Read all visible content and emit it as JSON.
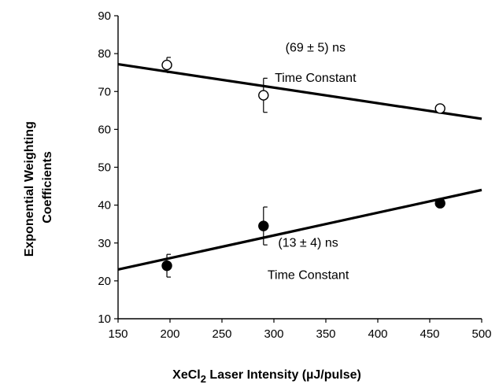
{
  "chart_data": {
    "type": "scatter",
    "xlabel": {
      "prefix": "XeCl",
      "subscript": "2",
      "suffix": " Laser Intensity (µJ/pulse)"
    },
    "ylabel_lines": [
      "Exponential Weighting",
      "Coefficients"
    ],
    "xlim": [
      150,
      500
    ],
    "ylim": [
      10,
      90
    ],
    "x_ticks": [
      150,
      200,
      250,
      300,
      350,
      400,
      450,
      500
    ],
    "y_ticks": [
      10,
      20,
      30,
      40,
      50,
      60,
      70,
      80,
      90
    ],
    "grid": false,
    "series": [
      {
        "marker": "open-circle",
        "points": [
          {
            "x": 197,
            "y": 77,
            "err": 2
          },
          {
            "x": 290,
            "y": 69,
            "err": 4.5
          },
          {
            "x": 460,
            "y": 65.5,
            "err": 0.5
          }
        ],
        "fit": {
          "x": [
            150,
            500
          ],
          "y": [
            77.2,
            62.8
          ]
        }
      },
      {
        "marker": "filled-circle",
        "points": [
          {
            "x": 197,
            "y": 24,
            "err": 3
          },
          {
            "x": 290,
            "y": 34.5,
            "err": 5
          },
          {
            "x": 460,
            "y": 40.5,
            "err": 0.5
          }
        ],
        "fit": {
          "x": [
            150,
            500
          ],
          "y": [
            23,
            44
          ]
        }
      }
    ],
    "annotations": [
      {
        "text": "(69 ± 5) ns",
        "x": 340,
        "y": 80.5
      },
      {
        "text": "Time Constant",
        "x": 340,
        "y": 72.5
      },
      {
        "text": "(13 ± 4) ns",
        "x": 333,
        "y": 29
      },
      {
        "text": "Time Constant",
        "x": 333,
        "y": 20.5
      }
    ]
  }
}
